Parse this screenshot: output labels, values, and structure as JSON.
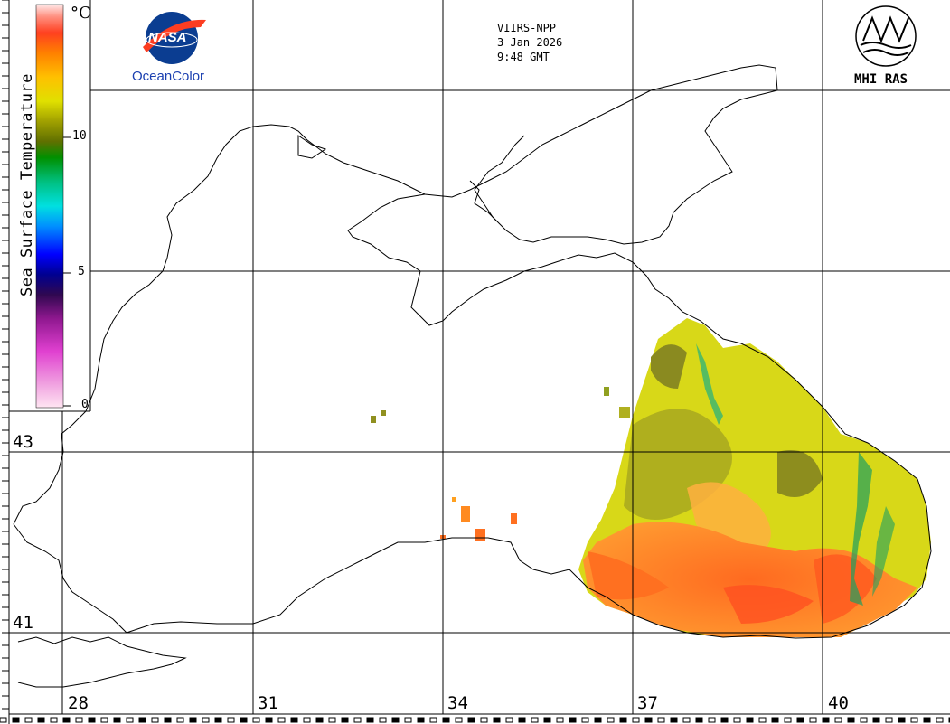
{
  "header": {
    "sensor": "VIIRS-NPP",
    "date": "3 Jan 2026",
    "time": "9:48 GMT"
  },
  "logos": {
    "nasa_text": "NASA",
    "oceancolor_text": "OceanColor",
    "mhi_text": "MHI RAS"
  },
  "colorbar": {
    "title": "Sea Surface Temperature",
    "units": "°C",
    "ticks": [
      "10",
      "5",
      "0"
    ],
    "stops": [
      "#ffe6f2",
      "#f5b0dc",
      "#e060d0",
      "#a020a0",
      "#301060",
      "#000080",
      "#0000ff",
      "#00a0ff",
      "#00e0e0",
      "#00c080",
      "#009000",
      "#607000",
      "#a0a000",
      "#e0e000",
      "#ffc000",
      "#ff8000",
      "#ff4020",
      "#ff9080",
      "#ffe0e0"
    ]
  },
  "grid": {
    "longitudes": [
      "28",
      "31",
      "34",
      "37",
      "40"
    ],
    "latitudes": [
      "43",
      "41"
    ]
  }
}
